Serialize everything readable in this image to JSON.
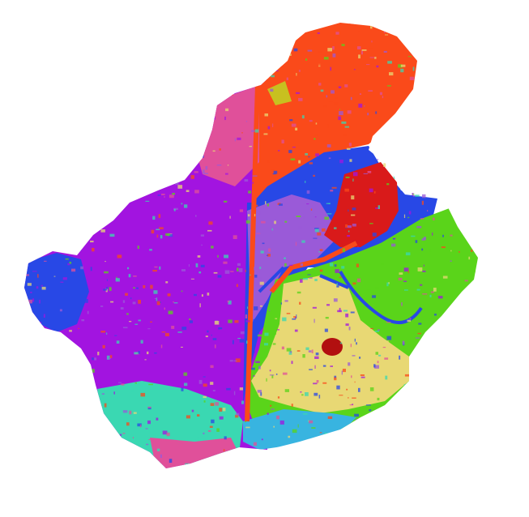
{
  "map": {
    "kind": "categorical land-cover map of a basin",
    "background": "#ffffff",
    "palette": {
      "violet": "#a214e0",
      "lavender": "#9a5ad8",
      "orange_red": "#fa4a1a",
      "blue": "#2848e6",
      "red": "#d91a1a",
      "green": "#5ad41a",
      "sand": "#e8d874",
      "teal": "#3ad8b2",
      "magenta": "#e0509a",
      "cyan": "#38b4e0",
      "olive": "#c8c020",
      "dark_red": "#b21010"
    }
  }
}
